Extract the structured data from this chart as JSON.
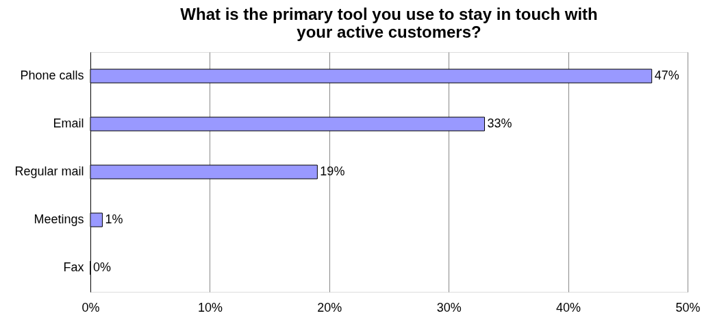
{
  "chart_data": {
    "type": "bar",
    "orientation": "horizontal",
    "title": "What is the primary tool you use to stay in touch with your active customers?",
    "categories": [
      "Phone calls",
      "Email",
      "Regular mail",
      "Meetings",
      "Fax"
    ],
    "values": [
      47,
      33,
      19,
      1,
      0
    ],
    "value_labels": [
      "47%",
      "33%",
      "19%",
      "1%",
      "0%"
    ],
    "color": "#9999ff",
    "xlim": [
      0,
      50
    ],
    "xticks": [
      {
        "value": 0,
        "label": "0%"
      },
      {
        "value": 10,
        "label": "10%"
      },
      {
        "value": 20,
        "label": "20%"
      },
      {
        "value": 30,
        "label": "30%"
      },
      {
        "value": 40,
        "label": "40%"
      },
      {
        "value": 50,
        "label": "50%"
      }
    ],
    "grid": "x"
  }
}
